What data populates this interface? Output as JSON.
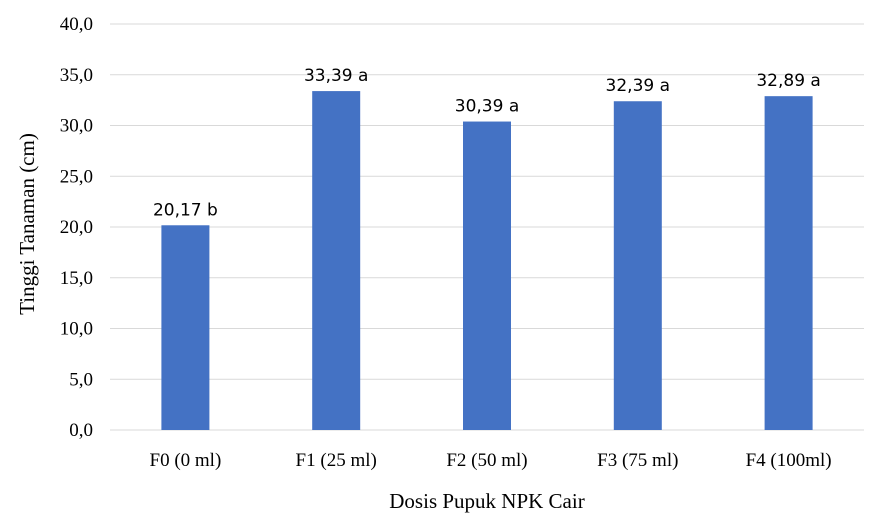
{
  "chart_data": {
    "type": "bar",
    "categories": [
      "F0 (0 ml)",
      "F1 (25 ml)",
      "F2 (50 ml)",
      "F3 (75 ml)",
      "F4 (100ml)"
    ],
    "values": [
      20.17,
      33.39,
      30.39,
      32.39,
      32.89
    ],
    "data_labels": [
      "20,17 b",
      "33,39 a",
      "30,39 a",
      "32,39 a",
      "32,89 a"
    ],
    "xlabel": "Dosis Pupuk NPK Cair",
    "ylabel": "Tinggi Tanaman (cm)",
    "ylim": [
      0,
      40
    ],
    "yticks": [
      "0,0",
      "5,0",
      "10,0",
      "15,0",
      "20,0",
      "25,0",
      "30,0",
      "35,0",
      "40,0"
    ],
    "grid": true,
    "bar_color": "#4472C4"
  }
}
